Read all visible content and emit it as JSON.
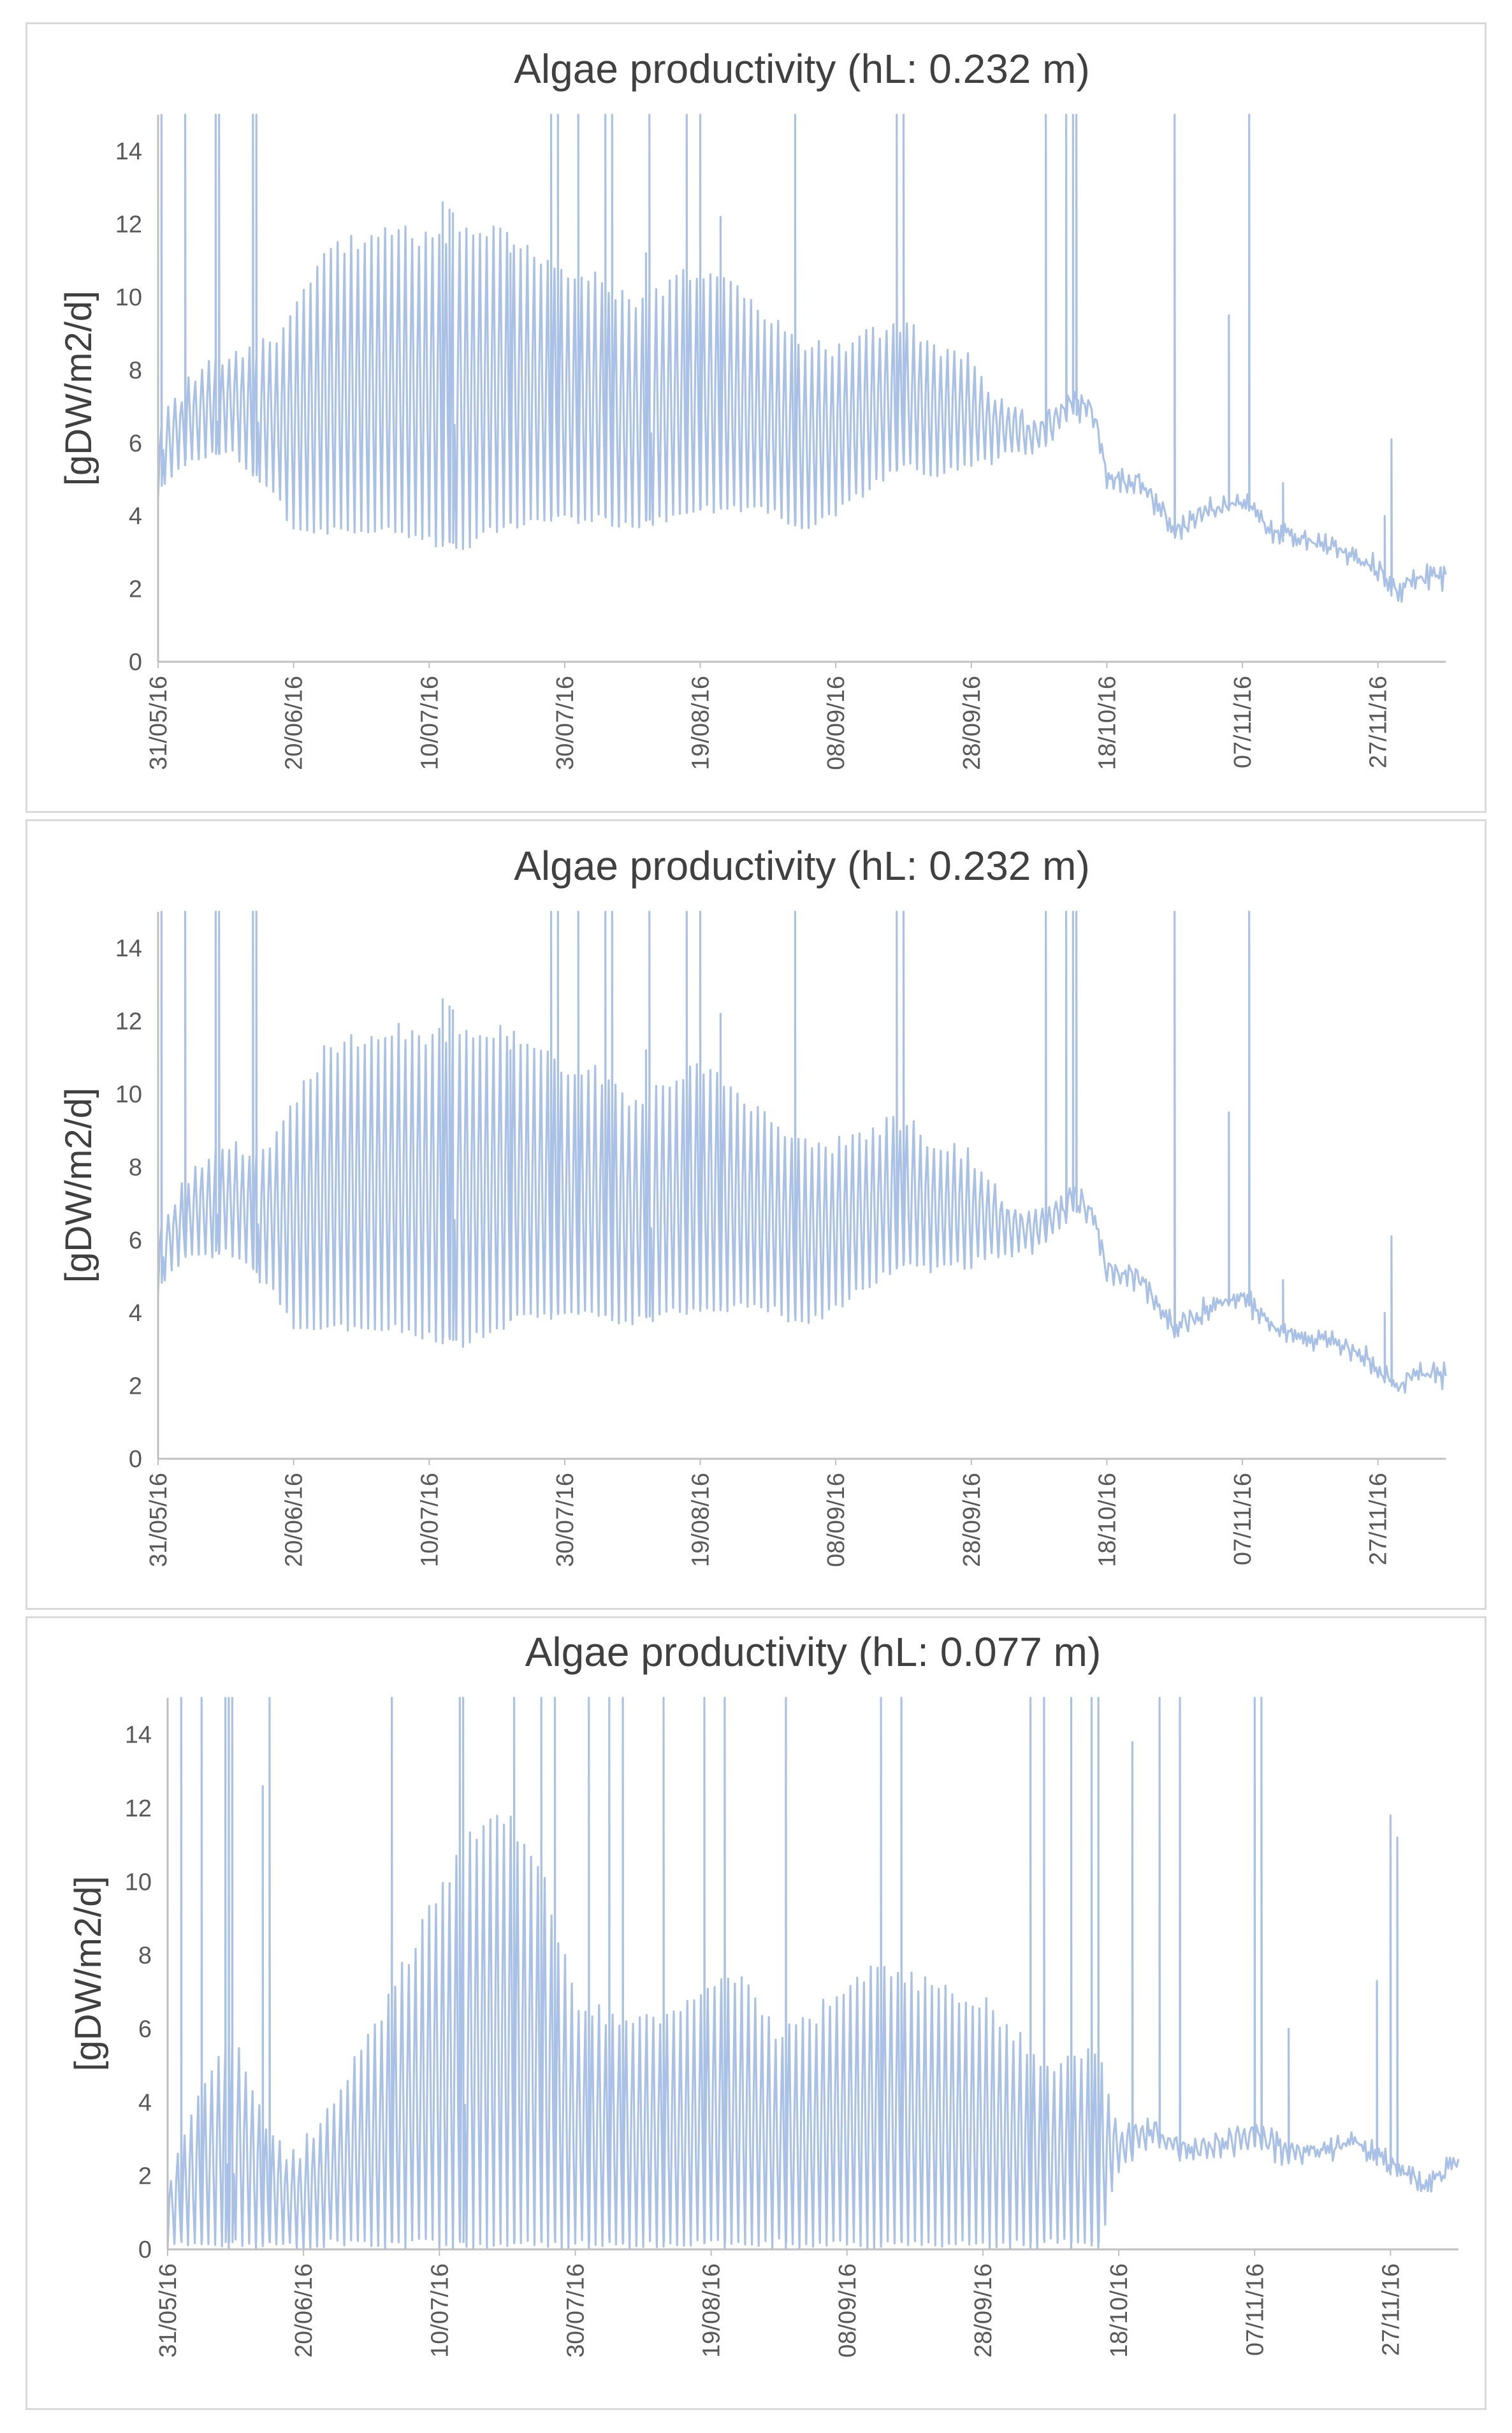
{
  "chart_data": [
    {
      "type": "line",
      "title": "Algae productivity (hL: 0.232 m)",
      "ylabel": "[gDW/m2/d]",
      "xlabel": "",
      "ylim": [
        0,
        15
      ],
      "yticks": [
        0,
        2,
        4,
        6,
        8,
        10,
        12,
        14
      ],
      "xticks": [
        "31/05/16",
        "20/06/16",
        "10/07/16",
        "30/07/16",
        "19/08/16",
        "08/09/16",
        "28/09/16",
        "18/10/16",
        "07/11/16",
        "27/11/16"
      ],
      "x_range_days": [
        0,
        190
      ],
      "line_color": "#a9c1e6",
      "series": [
        {
          "name": "productivity",
          "daily_x": [
            0,
            2,
            5,
            8,
            11,
            14,
            17,
            20,
            25,
            30,
            35,
            40,
            45,
            50,
            55,
            60,
            65,
            70,
            75,
            80,
            85,
            90,
            95,
            100,
            105,
            110,
            115,
            120,
            125,
            130,
            135,
            138,
            140,
            145,
            150,
            155,
            160,
            165,
            170,
            175,
            180,
            183,
            185,
            190
          ],
          "daily_max": [
            6.5,
            7.2,
            8.0,
            8.5,
            8.7,
            8.8,
            9.0,
            10.0,
            11.5,
            11.8,
            12.0,
            11.8,
            12.0,
            12.0,
            11.5,
            11.0,
            10.8,
            10.0,
            10.5,
            11.0,
            10.5,
            9.5,
            9.0,
            8.8,
            9.2,
            9.5,
            8.8,
            8.5,
            7.2,
            6.8,
            7.5,
            7.2,
            5.5,
            5.2,
            3.8,
            4.4,
            4.6,
            3.6,
            3.4,
            3.2,
            2.8,
            2.0,
            2.5,
            2.4
          ],
          "daily_min": [
            4.5,
            5.0,
            5.5,
            5.5,
            5.5,
            5.0,
            4.5,
            3.5,
            3.5,
            3.5,
            3.5,
            3.2,
            3.0,
            3.5,
            3.8,
            3.8,
            3.8,
            3.6,
            3.8,
            4.0,
            4.0,
            4.0,
            3.5,
            4.0,
            4.6,
            5.2,
            5.0,
            5.2,
            5.5,
            5.6,
            6.6,
            6.4,
            4.6,
            4.5,
            3.2,
            3.8,
            4.2,
            3.3,
            3.1,
            2.8,
            2.2,
            1.6,
            2.0,
            2.2
          ],
          "spike_days": [
            0.5,
            4,
            8.5,
            9,
            14,
            14.5,
            42,
            43,
            43.5,
            52,
            58,
            59,
            62,
            66,
            67,
            72,
            72.5,
            78,
            80,
            83,
            94,
            109,
            110,
            131,
            134,
            135,
            135.5,
            150,
            158,
            161,
            166,
            181,
            182
          ],
          "spike_peaks": [
            15,
            15,
            15,
            15,
            15,
            15,
            12.6,
            12.4,
            12.3,
            11.2,
            15,
            15,
            15,
            15,
            15,
            11.2,
            15,
            15,
            15,
            12.2,
            15,
            15,
            15,
            15,
            15,
            15,
            15,
            15,
            9.5,
            15,
            4.9,
            4.0,
            6.1
          ],
          "dips_to_zero": false
        }
      ]
    },
    {
      "type": "line",
      "title": "Algae productivity (hL: 0.232 m)",
      "ylabel": "[gDW/m2/d]",
      "xlabel": "",
      "ylim": [
        0,
        15
      ],
      "yticks": [
        0,
        2,
        4,
        6,
        8,
        10,
        12,
        14
      ],
      "xticks": [
        "31/05/16",
        "20/06/16",
        "10/07/16",
        "30/07/16",
        "19/08/16",
        "08/09/16",
        "28/09/16",
        "18/10/16",
        "07/11/16",
        "27/11/16"
      ],
      "x_range_days": [
        0,
        190
      ],
      "line_color": "#a9c1e6",
      "series": [
        {
          "name": "productivity",
          "daily_x": [
            0,
            2,
            5,
            8,
            11,
            14,
            17,
            20,
            25,
            30,
            35,
            40,
            45,
            50,
            55,
            60,
            65,
            70,
            75,
            80,
            85,
            90,
            95,
            100,
            105,
            110,
            115,
            120,
            125,
            130,
            135,
            138,
            140,
            145,
            150,
            155,
            160,
            165,
            170,
            175,
            180,
            183,
            185,
            190
          ],
          "daily_max": [
            6.5,
            7.2,
            8.0,
            8.5,
            8.7,
            8.8,
            9.0,
            10.0,
            11.5,
            11.8,
            12.0,
            11.8,
            12.0,
            12.0,
            11.5,
            11.0,
            10.8,
            10.0,
            10.5,
            11.0,
            10.5,
            9.5,
            9.0,
            8.8,
            9.2,
            9.5,
            8.8,
            8.5,
            7.2,
            6.8,
            7.5,
            7.2,
            5.5,
            5.2,
            3.8,
            4.4,
            4.6,
            3.6,
            3.4,
            3.2,
            2.8,
            2.0,
            2.5,
            2.4
          ],
          "daily_min": [
            4.5,
            5.0,
            5.5,
            5.5,
            5.5,
            5.0,
            4.5,
            3.5,
            3.5,
            3.5,
            3.5,
            3.2,
            3.0,
            3.5,
            3.8,
            3.8,
            3.8,
            3.6,
            3.8,
            4.0,
            4.0,
            4.0,
            3.5,
            4.0,
            4.6,
            5.2,
            5.0,
            5.2,
            5.5,
            5.6,
            6.6,
            6.4,
            4.6,
            4.5,
            3.2,
            3.8,
            4.2,
            3.3,
            3.1,
            2.8,
            2.2,
            1.6,
            2.0,
            2.2
          ],
          "spike_days": [
            0.5,
            4,
            8.5,
            9,
            14,
            14.5,
            42,
            43,
            43.5,
            52,
            58,
            59,
            62,
            66,
            67,
            72,
            72.5,
            78,
            80,
            83,
            94,
            109,
            110,
            131,
            134,
            135,
            135.5,
            150,
            158,
            161,
            166,
            181,
            182
          ],
          "spike_peaks": [
            15,
            15,
            15,
            15,
            15,
            15,
            12.6,
            12.4,
            12.3,
            11.2,
            15,
            15,
            15,
            15,
            15,
            11.2,
            15,
            15,
            15,
            12.2,
            15,
            15,
            15,
            15,
            15,
            15,
            15,
            15,
            9.5,
            15,
            4.9,
            4.0,
            6.1
          ],
          "dips_to_zero": false
        }
      ]
    },
    {
      "type": "line",
      "title": "Algae productivity (hL: 0.077 m)",
      "ylabel": "[gDW/m2/d]",
      "xlabel": "",
      "ylim": [
        0,
        15
      ],
      "yticks": [
        0,
        2,
        4,
        6,
        8,
        10,
        12,
        14
      ],
      "xticks": [
        "31/05/16",
        "20/06/16",
        "10/07/16",
        "30/07/16",
        "19/08/16",
        "08/09/16",
        "28/09/16",
        "18/10/16",
        "07/11/16",
        "27/11/16"
      ],
      "x_range_days": [
        0,
        190
      ],
      "line_color": "#a9c1e6",
      "series": [
        {
          "name": "productivity",
          "daily_x": [
            0,
            3,
            6,
            9,
            12,
            15,
            18,
            20,
            25,
            30,
            35,
            40,
            45,
            50,
            55,
            60,
            65,
            70,
            75,
            80,
            85,
            90,
            95,
            100,
            105,
            110,
            115,
            120,
            125,
            130,
            135,
            137,
            140,
            145,
            150,
            155,
            160,
            165,
            170,
            175,
            180,
            185,
            190
          ],
          "daily_max": [
            2.0,
            3.5,
            5.0,
            6.0,
            5.0,
            3.5,
            2.8,
            3.0,
            4.5,
            6.0,
            8.0,
            10.0,
            11.5,
            12.0,
            10.5,
            7.0,
            6.5,
            6.5,
            6.5,
            7.5,
            7.5,
            6.0,
            6.5,
            7.5,
            8.0,
            7.5,
            7.2,
            7.0,
            6.0,
            5.0,
            5.5,
            5.5,
            3.5,
            3.6,
            3.0,
            3.2,
            3.6,
            3.0,
            2.8,
            3.0,
            2.5,
            2.0,
            2.4
          ],
          "daily_min": [
            0,
            0,
            0,
            0,
            0,
            0,
            0,
            0,
            0,
            0,
            0,
            0,
            0,
            0,
            0,
            0,
            0,
            0,
            0,
            0,
            0,
            0,
            0,
            0,
            0,
            0,
            0,
            0,
            0,
            0,
            0,
            0,
            2.0,
            2.8,
            2.2,
            2.4,
            2.6,
            2.2,
            2.5,
            2.7,
            2.0,
            1.4,
            2.2
          ],
          "spike_days": [
            2,
            5,
            8.5,
            9,
            9.5,
            14,
            15,
            33,
            43,
            43.5,
            51,
            55,
            57,
            62,
            65,
            67,
            73,
            79,
            82,
            91,
            105,
            108,
            127,
            129,
            133,
            136,
            137,
            142,
            146,
            149,
            160,
            161,
            165,
            178,
            180,
            181
          ],
          "spike_peaks": [
            15,
            15,
            15,
            15,
            15,
            12.6,
            15,
            15,
            15,
            15,
            15,
            15,
            15,
            15,
            15,
            15,
            15,
            15,
            15,
            15,
            15,
            15,
            15,
            15,
            15,
            15,
            15,
            13.8,
            15,
            15,
            15,
            15,
            6.0,
            7.3,
            11.8,
            11.2
          ],
          "dips_to_zero": true
        }
      ]
    }
  ]
}
